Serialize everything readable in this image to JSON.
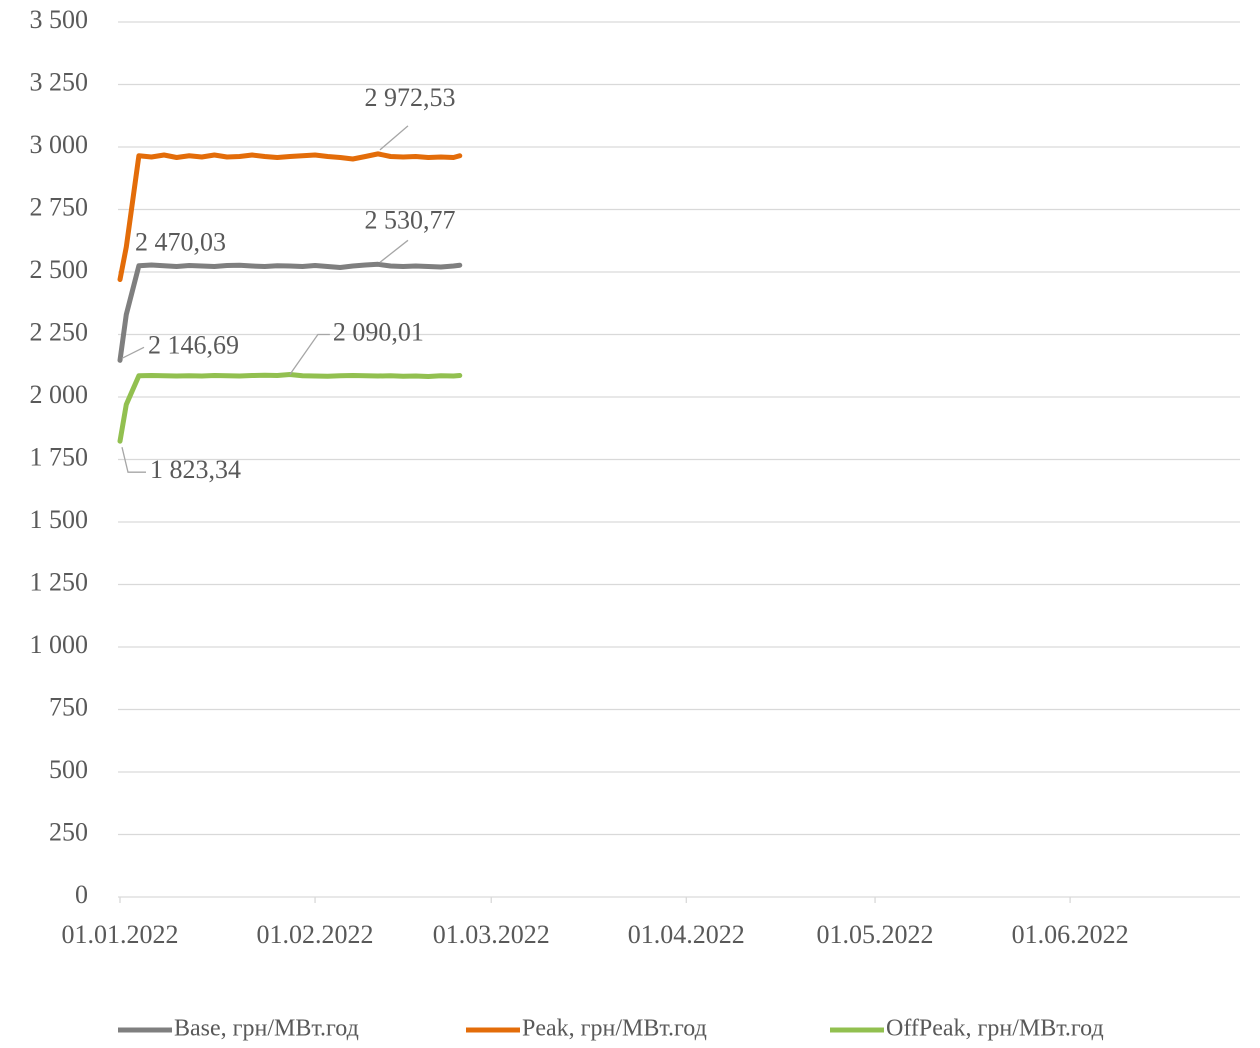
{
  "chart_data": {
    "type": "line",
    "x": [
      "2022-01-01",
      "2022-01-02",
      "2022-01-04",
      "2022-01-06",
      "2022-01-08",
      "2022-01-10",
      "2022-01-12",
      "2022-01-14",
      "2022-01-16",
      "2022-01-18",
      "2022-01-20",
      "2022-01-22",
      "2022-01-24",
      "2022-01-26",
      "2022-01-28",
      "2022-01-30",
      "2022-02-01",
      "2022-02-03",
      "2022-02-05",
      "2022-02-07",
      "2022-02-09",
      "2022-02-11",
      "2022-02-13",
      "2022-02-15",
      "2022-02-17",
      "2022-02-19",
      "2022-02-21",
      "2022-02-23",
      "2022-02-24"
    ],
    "series": [
      {
        "name": "Base, грн/МВт.год",
        "color": "#7f7f7f",
        "label_color": "#7f7f7f",
        "values": [
          2146.69,
          2330,
          2525,
          2528,
          2525,
          2522,
          2526,
          2524,
          2522,
          2526,
          2527,
          2524,
          2522,
          2525,
          2524,
          2522,
          2526,
          2522,
          2518,
          2524,
          2528,
          2530.77,
          2524,
          2522,
          2524,
          2522,
          2520,
          2524,
          2527
        ],
        "value_labels": [
          "2 146,69",
          null,
          null,
          null,
          null,
          null,
          null,
          null,
          null,
          null,
          null,
          null,
          null,
          null,
          null,
          null,
          null,
          null,
          null,
          null,
          null,
          "2 530,77",
          null,
          null,
          null,
          null,
          null,
          null,
          null
        ]
      },
      {
        "name": "Peak, грн/МВт.год",
        "color": "#e36c09",
        "label_color": "#e36c09",
        "values": [
          2470.03,
          2600,
          2965,
          2960,
          2968,
          2958,
          2965,
          2960,
          2968,
          2960,
          2962,
          2968,
          2962,
          2958,
          2962,
          2965,
          2968,
          2962,
          2958,
          2952,
          2962,
          2972.53,
          2962,
          2960,
          2962,
          2958,
          2960,
          2958,
          2965
        ],
        "value_labels": [
          "2 470,03",
          null,
          null,
          null,
          null,
          null,
          null,
          null,
          null,
          null,
          null,
          null,
          null,
          null,
          null,
          null,
          null,
          null,
          null,
          null,
          null,
          "2 972,53",
          null,
          null,
          null,
          null,
          null,
          null,
          null
        ]
      },
      {
        "name": "OffPeak, грн/МВт.год",
        "color": "#92c050",
        "label_color": "#77933c",
        "values": [
          1823.34,
          1970,
          2085,
          2086,
          2085,
          2084,
          2085,
          2084,
          2086,
          2085,
          2084,
          2086,
          2087,
          2086,
          2090.01,
          2085,
          2084,
          2083,
          2085,
          2086,
          2085,
          2084,
          2085,
          2083,
          2084,
          2082,
          2085,
          2084,
          2086
        ],
        "value_labels": [
          "1 823,34",
          null,
          null,
          null,
          null,
          null,
          null,
          null,
          null,
          null,
          null,
          null,
          null,
          null,
          "2 090,01",
          null,
          null,
          null,
          null,
          null,
          null,
          null,
          null,
          null,
          null,
          null,
          null,
          null,
          null
        ]
      }
    ],
    "xlim": [
      "2022-01-01",
      "2022-06-28"
    ],
    "xticks": [
      {
        "value": "2022-01-01",
        "label": "01.01.2022"
      },
      {
        "value": "2022-02-01",
        "label": "01.02.2022"
      },
      {
        "value": "2022-03-01",
        "label": "01.03.2022"
      },
      {
        "value": "2022-04-01",
        "label": "01.04.2022"
      },
      {
        "value": "2022-05-01",
        "label": "01.05.2022"
      },
      {
        "value": "2022-06-01",
        "label": "01.06.2022"
      }
    ],
    "ylim": [
      0,
      3500
    ],
    "yticks": [
      0,
      250,
      500,
      750,
      {
        "value": 1000,
        "label": "1 000"
      },
      {
        "value": 1250,
        "label": "1 250"
      },
      {
        "value": 1500,
        "label": "1 500"
      },
      {
        "value": 1750,
        "label": "1 750"
      },
      {
        "value": 2000,
        "label": "2 000"
      },
      {
        "value": 2250,
        "label": "2 250"
      },
      {
        "value": 2500,
        "label": "2 500"
      },
      {
        "value": 2750,
        "label": "2 750"
      },
      {
        "value": 3000,
        "label": "3 000"
      },
      {
        "value": 3250,
        "label": "3 250"
      },
      {
        "value": 3500,
        "label": "3 500"
      }
    ],
    "grid": true,
    "legend": "bottom"
  }
}
